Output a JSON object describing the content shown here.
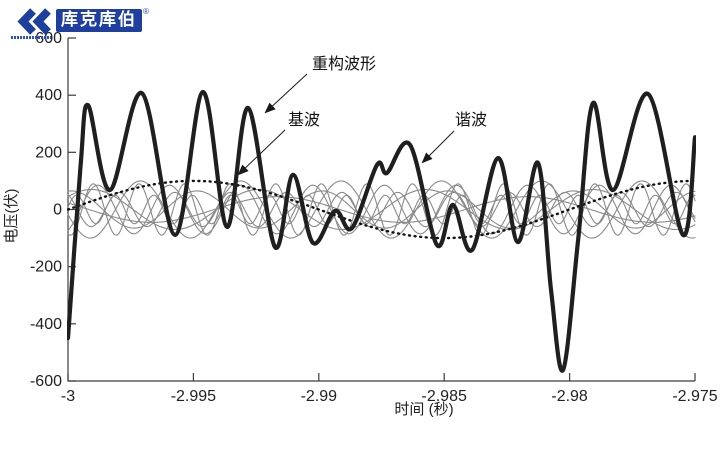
{
  "logo": {
    "brand": "库克库伯",
    "registered": "®"
  },
  "chart_data": {
    "type": "line",
    "title": "",
    "xlabel": "时间 (秒)",
    "ylabel": "电压(伏)",
    "xlim": [
      -3,
      -2.975
    ],
    "ylim": [
      -600,
      600
    ],
    "grid": false,
    "x_tick_labels": [
      "-3",
      "-2.995",
      "-2.99",
      "-2.985",
      "-2.98",
      "-2.975"
    ],
    "y_tick_labels": [
      "600",
      "400",
      "200",
      "0",
      "-200",
      "-400",
      "-600"
    ],
    "annotations": [
      {
        "label": "重构波形",
        "points_to": "thick reconstructed waveform"
      },
      {
        "label": "基波",
        "points_to": "dotted fundamental wave"
      },
      {
        "label": "谐波",
        "points_to": "thin gray harmonic waves"
      }
    ],
    "series": [
      {
        "name": "重构波形",
        "role": "reconstructed-waveform",
        "style": "thick-solid",
        "color": "#1f1f1f",
        "points": [
          [
            -3.0,
            -450
          ],
          [
            -2.9995,
            150
          ],
          [
            -2.9992,
            365
          ],
          [
            -2.99833,
            68
          ],
          [
            -2.99705,
            407
          ],
          [
            -2.99573,
            -89
          ],
          [
            -2.99462,
            411
          ],
          [
            -2.99366,
            -61
          ],
          [
            -2.99282,
            355
          ],
          [
            -2.99175,
            -131
          ],
          [
            -2.99103,
            121
          ],
          [
            -2.99023,
            -117
          ],
          [
            -2.98935,
            -5
          ],
          [
            -2.98868,
            -65
          ],
          [
            -2.98768,
            156
          ],
          [
            -2.98728,
            128
          ],
          [
            -2.98636,
            226
          ],
          [
            -2.98529,
            -124
          ],
          [
            -2.98465,
            16
          ],
          [
            -2.98389,
            -142
          ],
          [
            -2.98285,
            180
          ],
          [
            -2.98206,
            -114
          ],
          [
            -2.98126,
            163
          ],
          [
            -2.98074,
            -281
          ],
          [
            -2.98026,
            -561
          ],
          [
            -2.97966,
            -107
          ],
          [
            -2.97907,
            372
          ],
          [
            -2.97827,
            68
          ],
          [
            -2.97687,
            404
          ],
          [
            -2.97548,
            -89
          ],
          [
            -2.975,
            253
          ]
        ]
      },
      {
        "name": "基波",
        "role": "fundamental",
        "style": "dotted",
        "color": "#111111",
        "model": {
          "type": "sine",
          "amplitude_v": 100,
          "frequency_hz": 50,
          "phase_deg": 0
        }
      },
      {
        "name": "谐波",
        "role": "harmonics",
        "style": "thin-solid",
        "color": "#8a8a8a",
        "components": [
          {
            "frequency_hz": 100,
            "amplitude_v": 45,
            "phase_deg": 150
          },
          {
            "frequency_hz": 150,
            "amplitude_v": 70,
            "phase_deg": 40
          },
          {
            "frequency_hz": 200,
            "amplitude_v": 65,
            "phase_deg": 80
          },
          {
            "frequency_hz": 250,
            "amplitude_v": 100,
            "phase_deg": 190
          },
          {
            "frequency_hz": 350,
            "amplitude_v": 85,
            "phase_deg": 300
          },
          {
            "frequency_hz": 450,
            "amplitude_v": 60,
            "phase_deg": 120
          },
          {
            "frequency_hz": 550,
            "amplitude_v": 90,
            "phase_deg": 250
          },
          {
            "frequency_hz": 650,
            "amplitude_v": 50,
            "phase_deg": 10
          }
        ]
      }
    ]
  }
}
